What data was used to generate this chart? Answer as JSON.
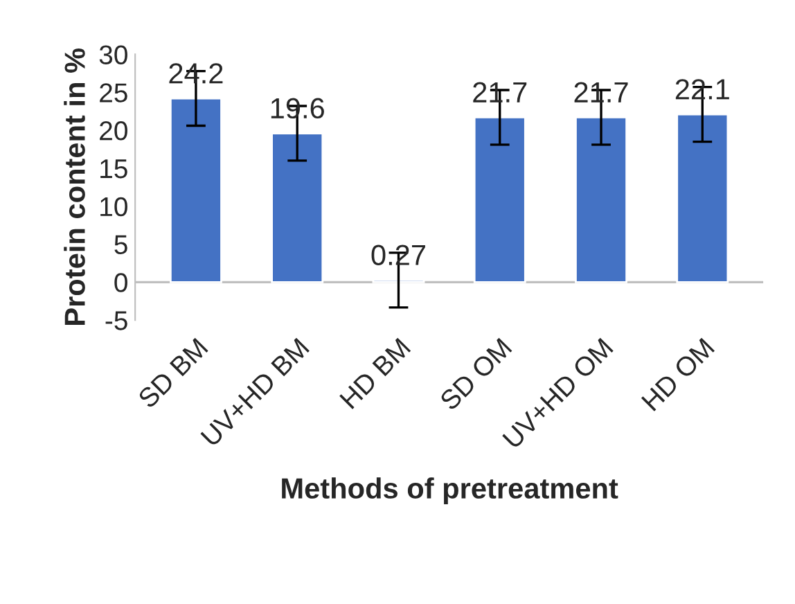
{
  "chart_data": {
    "type": "bar",
    "xlabel": "Methods of pretreatment",
    "ylabel": "Protein content in %",
    "categories": [
      "SD BM",
      "UV+HD BM",
      "HD BM",
      "SD OM",
      "UV+HD OM",
      "HD OM"
    ],
    "values": [
      24.2,
      19.6,
      0.27,
      21.7,
      21.7,
      22.1
    ],
    "errors": [
      3.6,
      3.6,
      3.6,
      3.6,
      3.6,
      3.6
    ],
    "color": "#4472c4",
    "data_labels": true,
    "ylim": [
      -5,
      30
    ],
    "yticks": [
      -5,
      0,
      5,
      10,
      15,
      20,
      25,
      30
    ],
    "grid": false,
    "legend": false
  }
}
